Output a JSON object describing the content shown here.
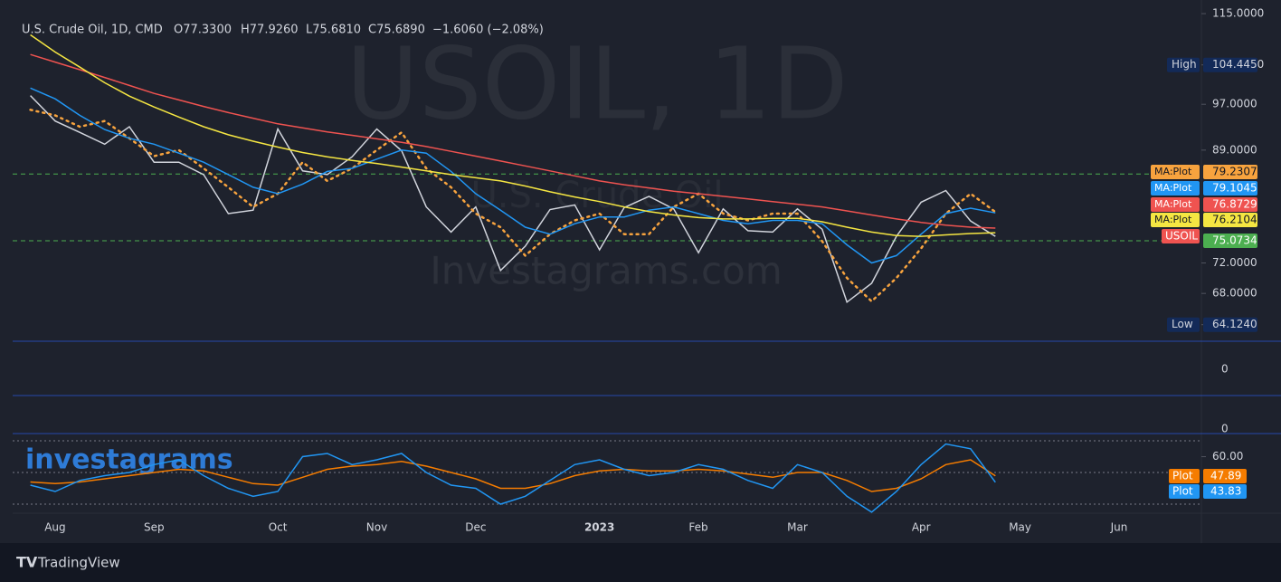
{
  "header": {
    "symbol": "U.S. Crude Oil, 1D, CMD",
    "ohlc": [
      "O77.3300",
      "H77.9260",
      "L75.6810",
      "C75.6890",
      "−1.6060 (−2.08%)"
    ]
  },
  "watermarks": [
    "USOIL, 1D",
    "U.S. Crude Oil",
    "Investagrams.com",
    "investagrams"
  ],
  "footer": "TradingView",
  "panes": [
    {
      "yticks": [
        0
      ]
    },
    {
      "yticks": [
        0
      ]
    }
  ],
  "chart_data": [
    {
      "type": "line",
      "log_scale": true,
      "categories": [
        null,
        "Aug",
        null,
        null,
        null,
        "Sep",
        null,
        null,
        null,
        null,
        "Oct",
        null,
        null,
        null,
        "Nov",
        null,
        null,
        null,
        "Dec",
        null,
        null,
        null,
        null,
        "2023",
        null,
        null,
        null,
        "Feb",
        null,
        null,
        null,
        "Mar",
        null,
        null,
        null,
        null,
        "Apr",
        null,
        null,
        null,
        "May",
        null,
        null,
        null,
        "Jun",
        null,
        null,
        null
      ],
      "ylim": [
        62.16,
        115.6
      ],
      "yticks": [
        {
          "value": 115,
          "label": "115.0000"
        },
        {
          "value": 97,
          "label": "97.0000"
        },
        {
          "value": 89,
          "label": "89.0000"
        },
        {
          "value": 72,
          "label": "72.0000"
        },
        {
          "value": 68,
          "label": "68.0000"
        }
      ],
      "high": {
        "label": "High",
        "value": 104.445,
        "value_label": "104.4450"
      },
      "low": {
        "label": "Low",
        "value": 64.124,
        "value_label": "64.1240"
      },
      "hlines": [
        {
          "value": 85.1,
          "color": "#4caf50"
        },
        {
          "value": 75.0734,
          "label": "75.0734",
          "color": "#4caf50"
        }
      ],
      "series": [
        {
          "name": "USOIL",
          "color": "#d1d4dc",
          "values": [
            98.6,
            94,
            92,
            90,
            93,
            87,
            87,
            85,
            79,
            79.5,
            92.6,
            85.6,
            85,
            87.9,
            92.6,
            88.9,
            80,
            76.3,
            80,
            71,
            74.3,
            79.6,
            80.3,
            73.8,
            79.9,
            81.6,
            79.7,
            73.4,
            79.7,
            76.5,
            76.3,
            79.7,
            76.7,
            66.9,
            69.3,
            75.7,
            80.7,
            82.5,
            77.9,
            75.689,
            null,
            null,
            null,
            null,
            null,
            null,
            null,
            null
          ]
        },
        {
          "name": "MA:Plot",
          "color": "#f7a33e",
          "dotted": true,
          "values": [
            96,
            95,
            93,
            94,
            91,
            88,
            89,
            86,
            83,
            80,
            82,
            87,
            84,
            86,
            89,
            92,
            86,
            83,
            79,
            77,
            73,
            76,
            78,
            79,
            76,
            76,
            80,
            82,
            79,
            78,
            79,
            79,
            75,
            70,
            67,
            70,
            74,
            79,
            82,
            79.2307,
            null,
            null,
            null,
            null,
            null,
            null,
            null,
            null
          ]
        },
        {
          "name": "MA:Plot",
          "color": "#2196f3",
          "values": [
            100,
            98,
            95,
            92.5,
            91,
            90,
            88.5,
            87,
            85,
            83,
            82,
            83.5,
            85.5,
            86,
            87.5,
            89,
            88.5,
            85.5,
            82,
            79.5,
            77,
            76,
            77.5,
            78.5,
            78.5,
            79.5,
            80,
            79,
            78,
            77.5,
            78,
            78,
            77.5,
            74.5,
            72,
            73,
            76,
            79,
            79.8,
            79.1045,
            null,
            null,
            null,
            null,
            null,
            null,
            null,
            null
          ]
        },
        {
          "name": "MA:Plot",
          "color": "#ef5350",
          "values": [
            106.5,
            105,
            103.5,
            102,
            100.5,
            99,
            97.8,
            96.6,
            95.5,
            94.5,
            93.5,
            92.8,
            92.1,
            91.5,
            90.9,
            90.3,
            89.6,
            88.8,
            88,
            87.2,
            86.4,
            85.6,
            84.8,
            84,
            83.4,
            82.9,
            82.4,
            82,
            81.6,
            81.2,
            80.8,
            80.4,
            80,
            79.4,
            78.8,
            78.2,
            77.7,
            77.3,
            77,
            76.8729,
            null,
            null,
            null,
            null,
            null,
            null,
            null,
            null
          ]
        },
        {
          "name": "MA:Plot",
          "color": "#f5e642",
          "values": [
            110.5,
            107,
            104,
            101,
            98.5,
            96.5,
            94.7,
            93,
            91.6,
            90.5,
            89.5,
            88.6,
            87.9,
            87.3,
            86.8,
            86.2,
            85.6,
            85,
            84.5,
            84,
            83.2,
            82.3,
            81.5,
            80.8,
            80,
            79.3,
            78.8,
            78.4,
            78.2,
            78.2,
            78.3,
            78.3,
            77.8,
            77,
            76.3,
            75.8,
            75.7,
            75.9,
            76.1,
            76.2104,
            null,
            null,
            null,
            null,
            null,
            null,
            null,
            null
          ]
        }
      ]
    },
    {
      "type": "line",
      "ylim": [
        24.3,
        74.6
      ],
      "yticks": [
        {
          "value": 60,
          "label": "60.00"
        }
      ],
      "hlines": [
        70,
        50,
        30
      ],
      "series": [
        {
          "name": "Plot",
          "color": "#f57c00",
          "values": [
            44,
            43,
            44,
            46,
            48,
            50,
            52,
            51,
            47,
            43,
            42,
            47,
            52,
            54,
            55,
            57,
            54,
            50,
            46,
            40,
            40,
            43,
            48,
            51,
            52,
            51,
            51,
            52,
            51,
            49,
            47,
            50,
            50,
            45,
            38,
            40,
            46,
            55,
            58,
            47.89,
            null,
            null,
            null,
            null,
            null,
            null,
            null,
            null
          ]
        },
        {
          "name": "Plot",
          "color": "#2196f3",
          "values": [
            42,
            38,
            45,
            48,
            50,
            55,
            58,
            48,
            40,
            35,
            38,
            60,
            62,
            55,
            58,
            62,
            50,
            42,
            40,
            30,
            35,
            45,
            55,
            58,
            52,
            48,
            50,
            55,
            52,
            45,
            40,
            55,
            50,
            35,
            25,
            38,
            55,
            68,
            65,
            43.83,
            null,
            null,
            null,
            null,
            null,
            null,
            null,
            null
          ]
        }
      ]
    }
  ]
}
